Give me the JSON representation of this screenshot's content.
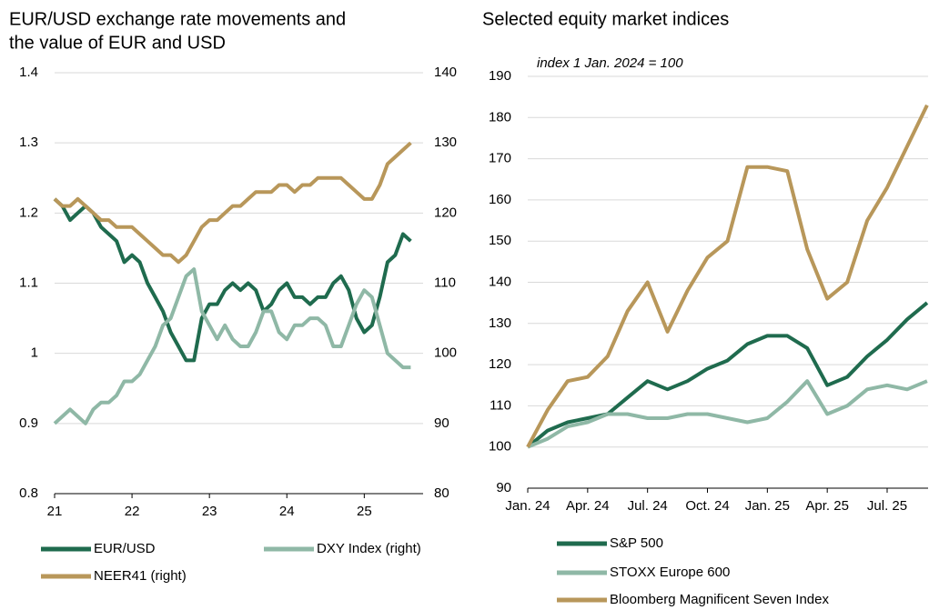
{
  "chart_data": [
    {
      "type": "line",
      "title": [
        "EUR/USD exchange rate movements and",
        "the value of EUR and USD"
      ],
      "x": [
        21.0,
        21.1,
        21.2,
        21.3,
        21.4,
        21.5,
        21.6,
        21.7,
        21.8,
        21.9,
        22.0,
        22.1,
        22.2,
        22.3,
        22.4,
        22.5,
        22.6,
        22.7,
        22.8,
        22.9,
        23.0,
        23.1,
        23.2,
        23.3,
        23.4,
        23.5,
        23.6,
        23.7,
        23.8,
        23.9,
        24.0,
        24.1,
        24.2,
        24.3,
        24.4,
        24.5,
        24.6,
        24.7,
        24.8,
        24.9,
        25.0,
        25.1,
        25.2,
        25.3,
        25.4,
        25.5,
        25.6
      ],
      "xlim": [
        21,
        25.76
      ],
      "xticks": [
        21,
        22,
        23,
        24,
        25
      ],
      "ylim": [
        0.8,
        1.4
      ],
      "yticks": [
        0.8,
        0.9,
        1.0,
        1.1,
        1.2,
        1.3,
        1.4
      ],
      "y2lim": [
        80,
        140
      ],
      "y2ticks": [
        80,
        90,
        100,
        110,
        120,
        130,
        140
      ],
      "grid": true,
      "legend": "bottom",
      "series": [
        {
          "name": "EUR/USD",
          "color": "#1f6b4e",
          "values": [
            1.22,
            1.21,
            1.19,
            1.2,
            1.21,
            1.2,
            1.18,
            1.17,
            1.16,
            1.13,
            1.14,
            1.13,
            1.1,
            1.08,
            1.06,
            1.03,
            1.01,
            0.99,
            0.99,
            1.05,
            1.07,
            1.07,
            1.09,
            1.1,
            1.09,
            1.1,
            1.09,
            1.06,
            1.07,
            1.09,
            1.1,
            1.08,
            1.08,
            1.07,
            1.08,
            1.08,
            1.1,
            1.11,
            1.09,
            1.05,
            1.03,
            1.04,
            1.08,
            1.13,
            1.14,
            1.17,
            1.16
          ]
        },
        {
          "name": "DXY Index (right)",
          "color": "#8fb8a6",
          "axis": "y2",
          "values": [
            90,
            91,
            92,
            91,
            90,
            92,
            93,
            93,
            94,
            96,
            96,
            97,
            99,
            101,
            104,
            105,
            108,
            111,
            112,
            106,
            104,
            102,
            104,
            102,
            101,
            101,
            103,
            106,
            106,
            103,
            102,
            104,
            104,
            105,
            105,
            104,
            101,
            101,
            104,
            107,
            109,
            108,
            104,
            100,
            99,
            98,
            98
          ]
        },
        {
          "name": "NEER41 (right)",
          "color": "#b8975a",
          "axis": "y2",
          "values": [
            122,
            121,
            121,
            122,
            121,
            120,
            119,
            119,
            118,
            118,
            118,
            117,
            116,
            115,
            114,
            114,
            113,
            114,
            116,
            118,
            119,
            119,
            120,
            121,
            121,
            122,
            123,
            123,
            123,
            124,
            124,
            123,
            124,
            124,
            125,
            125,
            125,
            125,
            124,
            123,
            122,
            122,
            124,
            127,
            128,
            129,
            130
          ]
        }
      ]
    },
    {
      "type": "line",
      "title": [
        "Selected equity market indices"
      ],
      "annotation": "index 1 Jan. 2024 = 100",
      "x": [
        "2024-01",
        "2024-02",
        "2024-03",
        "2024-04",
        "2024-05",
        "2024-06",
        "2024-07",
        "2024-08",
        "2024-09",
        "2024-10",
        "2024-11",
        "2024-12",
        "2025-01",
        "2025-02",
        "2025-03",
        "2025-04",
        "2025-05",
        "2025-06",
        "2025-07",
        "2025-08",
        "2025-09"
      ],
      "xticks": [
        {
          "value": "2024-01",
          "label": "Jan. 24"
        },
        {
          "value": "2024-04",
          "label": "Apr. 24"
        },
        {
          "value": "2024-07",
          "label": "Jul. 24"
        },
        {
          "value": "2024-10",
          "label": "Oct. 24"
        },
        {
          "value": "2025-01",
          "label": "Jan. 25"
        },
        {
          "value": "2025-04",
          "label": "Apr. 25"
        },
        {
          "value": "2025-07",
          "label": "Jul. 25"
        }
      ],
      "ylim": [
        90,
        190
      ],
      "yticks": [
        90,
        100,
        110,
        120,
        130,
        140,
        150,
        160,
        170,
        180,
        190
      ],
      "grid": true,
      "legend": "bottom",
      "series": [
        {
          "name": "S&P 500",
          "color": "#1f6b4e",
          "values": [
            100,
            104,
            106,
            107,
            108,
            112,
            116,
            114,
            116,
            119,
            121,
            125,
            127,
            127,
            124,
            115,
            117,
            122,
            126,
            131,
            135
          ]
        },
        {
          "name": "STOXX Europe 600",
          "color": "#8fb8a6",
          "values": [
            100,
            102,
            105,
            106,
            108,
            108,
            107,
            107,
            108,
            108,
            107,
            106,
            107,
            111,
            116,
            108,
            110,
            114,
            115,
            114,
            116
          ]
        },
        {
          "name": "Bloomberg Magnificent Seven Index",
          "color": "#b8975a",
          "values": [
            100,
            109,
            116,
            117,
            122,
            133,
            140,
            128,
            138,
            146,
            150,
            168,
            168,
            167,
            148,
            136,
            140,
            155,
            163,
            173,
            183
          ]
        }
      ]
    }
  ]
}
